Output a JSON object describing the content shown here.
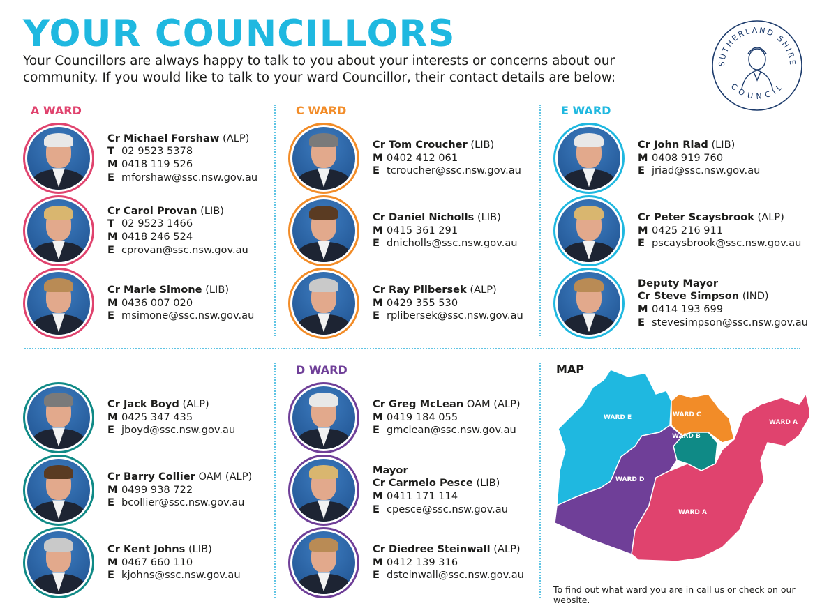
{
  "title": "YOUR COUNCILLORS",
  "intro": "Your Councillors are always happy to talk to you about your interests or concerns about our community.  If you would like to talk to your ward Councillor, their contact details are below:",
  "logo": {
    "text_top": "SUTHERLAND SHIRE",
    "text_bottom": "COUNCIL",
    "color": "#1b3a6b"
  },
  "wards": [
    {
      "heading": "A WARD",
      "color": "#e0436e",
      "councillors": [
        {
          "titles": [],
          "name": "Cr Michael Forshaw",
          "suffix": "(ALP)",
          "contacts": [
            {
              "k": "T",
              "v": "02 9523 5378"
            },
            {
              "k": "M",
              "v": "0418 119 526"
            },
            {
              "k": "E",
              "v": "mforshaw@ssc.nsw.gov.au"
            }
          ]
        },
        {
          "titles": [],
          "name": "Cr Carol Provan",
          "suffix": "(LIB)",
          "contacts": [
            {
              "k": "T",
              "v": "02 9523 1466"
            },
            {
              "k": "M",
              "v": "0418 246 524"
            },
            {
              "k": "E",
              "v": "cprovan@ssc.nsw.gov.au"
            }
          ]
        },
        {
          "titles": [],
          "name": "Cr Marie Simone",
          "suffix": "(LIB)",
          "contacts": [
            {
              "k": "M",
              "v": "0436 007 020"
            },
            {
              "k": "E",
              "v": "msimone@ssc.nsw.gov.au"
            }
          ]
        }
      ]
    },
    {
      "heading": "C WARD",
      "color": "#f28c28",
      "councillors": [
        {
          "titles": [],
          "name": "Cr Tom Croucher",
          "suffix": "(LIB)",
          "contacts": [
            {
              "k": "M",
              "v": "0402 412 061"
            },
            {
              "k": "E",
              "v": "tcroucher@ssc.nsw.gov.au"
            }
          ]
        },
        {
          "titles": [],
          "name": "Cr Daniel Nicholls",
          "suffix": "(LIB)",
          "contacts": [
            {
              "k": "M",
              "v": "0415 361 291"
            },
            {
              "k": "E",
              "v": "dnicholls@ssc.nsw.gov.au"
            }
          ]
        },
        {
          "titles": [],
          "name": "Cr Ray Plibersek",
          "suffix": "(ALP)",
          "contacts": [
            {
              "k": "M",
              "v": "0429 355 530"
            },
            {
              "k": "E",
              "v": "rplibersek@ssc.nsw.gov.au"
            }
          ]
        }
      ]
    },
    {
      "heading": "E WARD",
      "color": "#1fb8e0",
      "councillors": [
        {
          "titles": [],
          "name": "Cr John Riad",
          "suffix": "(LIB)",
          "contacts": [
            {
              "k": "M",
              "v": "0408 919 760"
            },
            {
              "k": "E",
              "v": "jriad@ssc.nsw.gov.au"
            }
          ]
        },
        {
          "titles": [],
          "name": "Cr Peter Scaysbrook",
          "suffix": "(ALP)",
          "contacts": [
            {
              "k": "M",
              "v": "0425 216 911"
            },
            {
              "k": "E",
              "v": "pscaysbrook@ssc.nsw.gov.au"
            }
          ]
        },
        {
          "titles": [
            "Deputy Mayor"
          ],
          "name": "Cr Steve Simpson",
          "suffix": "(IND)",
          "contacts": [
            {
              "k": "M",
              "v": "0414 193 699"
            },
            {
              "k": "E",
              "v": "stevesimpson@ssc.nsw.gov.au"
            }
          ]
        }
      ]
    },
    {
      "heading": "",
      "color": "#0f8a86",
      "councillors": [
        {
          "titles": [],
          "name": "Cr Jack Boyd",
          "suffix": "(ALP)",
          "contacts": [
            {
              "k": "M",
              "v": "0425 347 435"
            },
            {
              "k": "E",
              "v": "jboyd@ssc.nsw.gov.au"
            }
          ]
        },
        {
          "titles": [],
          "name": "Cr Barry Collier",
          "suffix": "OAM (ALP)",
          "contacts": [
            {
              "k": "M",
              "v": "0499 938 722"
            },
            {
              "k": "E",
              "v": "bcollier@ssc.nsw.gov.au"
            }
          ]
        },
        {
          "titles": [],
          "name": "Cr Kent Johns",
          "suffix": "(LIB)",
          "contacts": [
            {
              "k": "M",
              "v": "0467 660 110"
            },
            {
              "k": "E",
              "v": "kjohns@ssc.nsw.gov.au"
            }
          ]
        }
      ]
    },
    {
      "heading": "D WARD",
      "color": "#6f3f98",
      "councillors": [
        {
          "titles": [],
          "name": "Cr Greg McLean",
          "suffix": "OAM (ALP)",
          "contacts": [
            {
              "k": "M",
              "v": "0419 184 055"
            },
            {
              "k": "E",
              "v": "gmclean@ssc.nsw.gov.au"
            }
          ]
        },
        {
          "titles": [
            "Mayor"
          ],
          "name": "Cr Carmelo Pesce",
          "suffix": "(LIB)",
          "contacts": [
            {
              "k": "M",
              "v": "0411 171 114"
            },
            {
              "k": "E",
              "v": "cpesce@ssc.nsw.gov.au"
            }
          ]
        },
        {
          "titles": [],
          "name": "Cr Diedree Steinwall",
          "suffix": "(ALP)",
          "contacts": [
            {
              "k": "M",
              "v": "0412 139 316"
            },
            {
              "k": "E",
              "v": "dsteinwall@ssc.nsw.gov.au"
            }
          ]
        }
      ]
    }
  ],
  "map": {
    "heading": "MAP",
    "labels": {
      "e": "WARD E",
      "c": "WARD C",
      "b": "WARD B",
      "d": "WARD D",
      "a1": "WARD A",
      "a2": "WARD A"
    },
    "colors": {
      "e": "#1fb8e0",
      "c": "#f28c28",
      "b": "#0f8a86",
      "d": "#6f3f98",
      "a": "#e0436e"
    },
    "note": "To find out what ward you are in call us or check on our website."
  }
}
